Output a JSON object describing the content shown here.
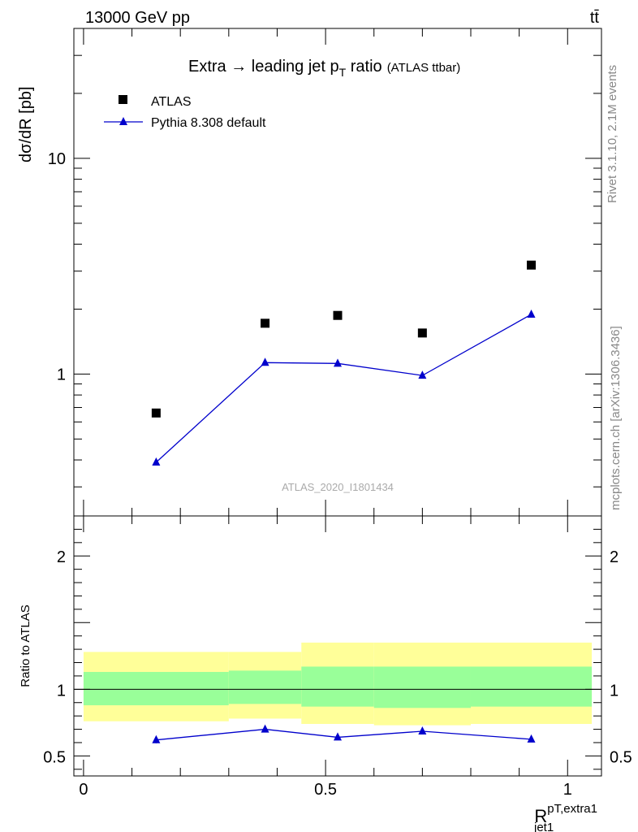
{
  "header": {
    "left": "13000 GeV pp",
    "right": "tt̄"
  },
  "side_labels": {
    "rivet": "Rivet 3.1.10,  2.1M events",
    "mcplots": "mcplots.cern.ch [arXiv:1306.3436]"
  },
  "chart_data": [
    {
      "type": "scatter",
      "title": "Extra → leading jet p",
      "title_sub": "T",
      "title_tail": " ratio",
      "title_note": "(ATLAS ttbar)",
      "ylabel": "dσ/dR [pb]",
      "yscale": "log",
      "ylim": [
        0.22,
        40
      ],
      "yticks": [
        {
          "value": 1,
          "label": "1"
        },
        {
          "value": 10,
          "label": "10"
        }
      ],
      "watermark": "ATLAS_2020_I1801434",
      "legend": {
        "position": "top-left"
      },
      "x": [
        0.15,
        0.375,
        0.525,
        0.7,
        0.925
      ],
      "series": [
        {
          "name": "ATLAS",
          "marker": "square",
          "color": "#000000",
          "values": [
            0.66,
            1.72,
            1.87,
            1.55,
            3.2
          ]
        },
        {
          "name": "Pythia 8.308 default",
          "marker": "triangle",
          "color": "#0000cc",
          "values": [
            0.39,
            1.13,
            1.12,
            0.985,
            1.89
          ]
        }
      ]
    },
    {
      "type": "line",
      "ylabel": "Ratio to ATLAS",
      "xlabel": "R",
      "xlabel_sup": "pT,extra1",
      "xlabel_sub": "jet1",
      "xlim": [
        -0.02,
        1.07
      ],
      "ylim": [
        0.35,
        2.3
      ],
      "xticks": [
        {
          "value": 0,
          "label": "0"
        },
        {
          "value": 0.5,
          "label": "0.5"
        },
        {
          "value": 1,
          "label": "1"
        }
      ],
      "yticks": [
        {
          "value": 0.5,
          "label": "0.5"
        },
        {
          "value": 1,
          "label": "1"
        },
        {
          "value": 2,
          "label": "2"
        }
      ],
      "bands": [
        {
          "x0": 0.0,
          "x1": 0.3,
          "yellow": [
            0.76,
            1.28
          ],
          "green": [
            0.88,
            1.13
          ]
        },
        {
          "x0": 0.3,
          "x1": 0.45,
          "yellow": [
            0.78,
            1.28
          ],
          "green": [
            0.89,
            1.14
          ]
        },
        {
          "x0": 0.45,
          "x1": 0.6,
          "yellow": [
            0.74,
            1.35
          ],
          "green": [
            0.87,
            1.17
          ]
        },
        {
          "x0": 0.6,
          "x1": 0.8,
          "yellow": [
            0.73,
            1.35
          ],
          "green": [
            0.86,
            1.17
          ]
        },
        {
          "x0": 0.8,
          "x1": 1.05,
          "yellow": [
            0.74,
            1.35
          ],
          "green": [
            0.87,
            1.17
          ]
        }
      ],
      "ratio": {
        "name": "Pythia 8.308 default",
        "color": "#0000cc",
        "x": [
          0.15,
          0.375,
          0.525,
          0.7,
          0.925
        ],
        "values": [
          0.62,
          0.7,
          0.64,
          0.685,
          0.625
        ],
        "err": [
          0.025,
          0.02,
          0.02,
          0.02,
          0.01
        ]
      }
    }
  ]
}
